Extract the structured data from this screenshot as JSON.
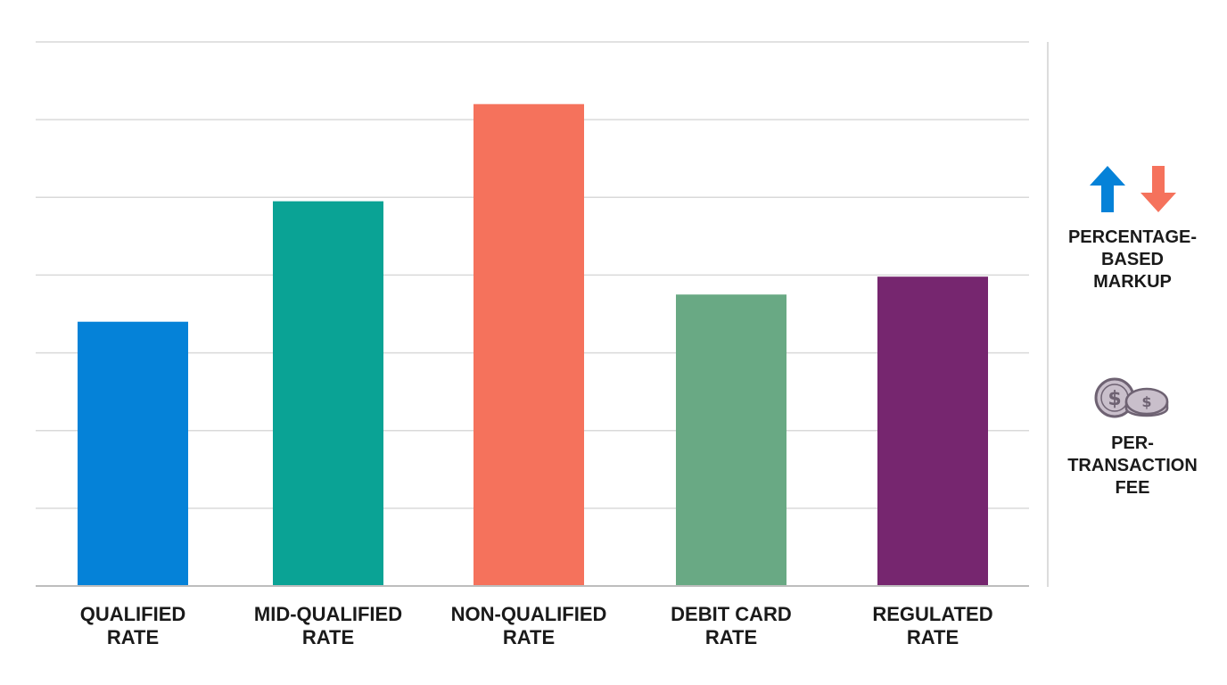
{
  "chart_data": {
    "type": "bar",
    "categories": [
      [
        "QUALIFIED",
        "RATE"
      ],
      [
        "MID-QUALIFIED",
        "RATE"
      ],
      [
        "NON-QUALIFIED",
        "RATE"
      ],
      [
        "DEBIT CARD",
        "RATE"
      ],
      [
        "REGULATED",
        "RATE"
      ]
    ],
    "values": [
      3.4,
      4.95,
      6.2,
      3.75,
      3.98
    ],
    "ylim": [
      0,
      7
    ],
    "grid": true,
    "y_tick_labels": false,
    "colors": [
      "#0582d8",
      "#0aa395",
      "#f5725c",
      "#69a984",
      "#76266f"
    ]
  },
  "legend": {
    "markup": {
      "lines": [
        "PERCENTAGE-",
        "BASED",
        "MARKUP"
      ],
      "icon": "up-down-arrows-icon",
      "up_color": "#0582d8",
      "down_color": "#f5725c"
    },
    "fee": {
      "lines": [
        "PER-",
        "TRANSACTION",
        "FEE"
      ],
      "icon": "coins-icon",
      "coin_color": "#c9bfcb",
      "coin_stroke": "#6e6272"
    }
  }
}
